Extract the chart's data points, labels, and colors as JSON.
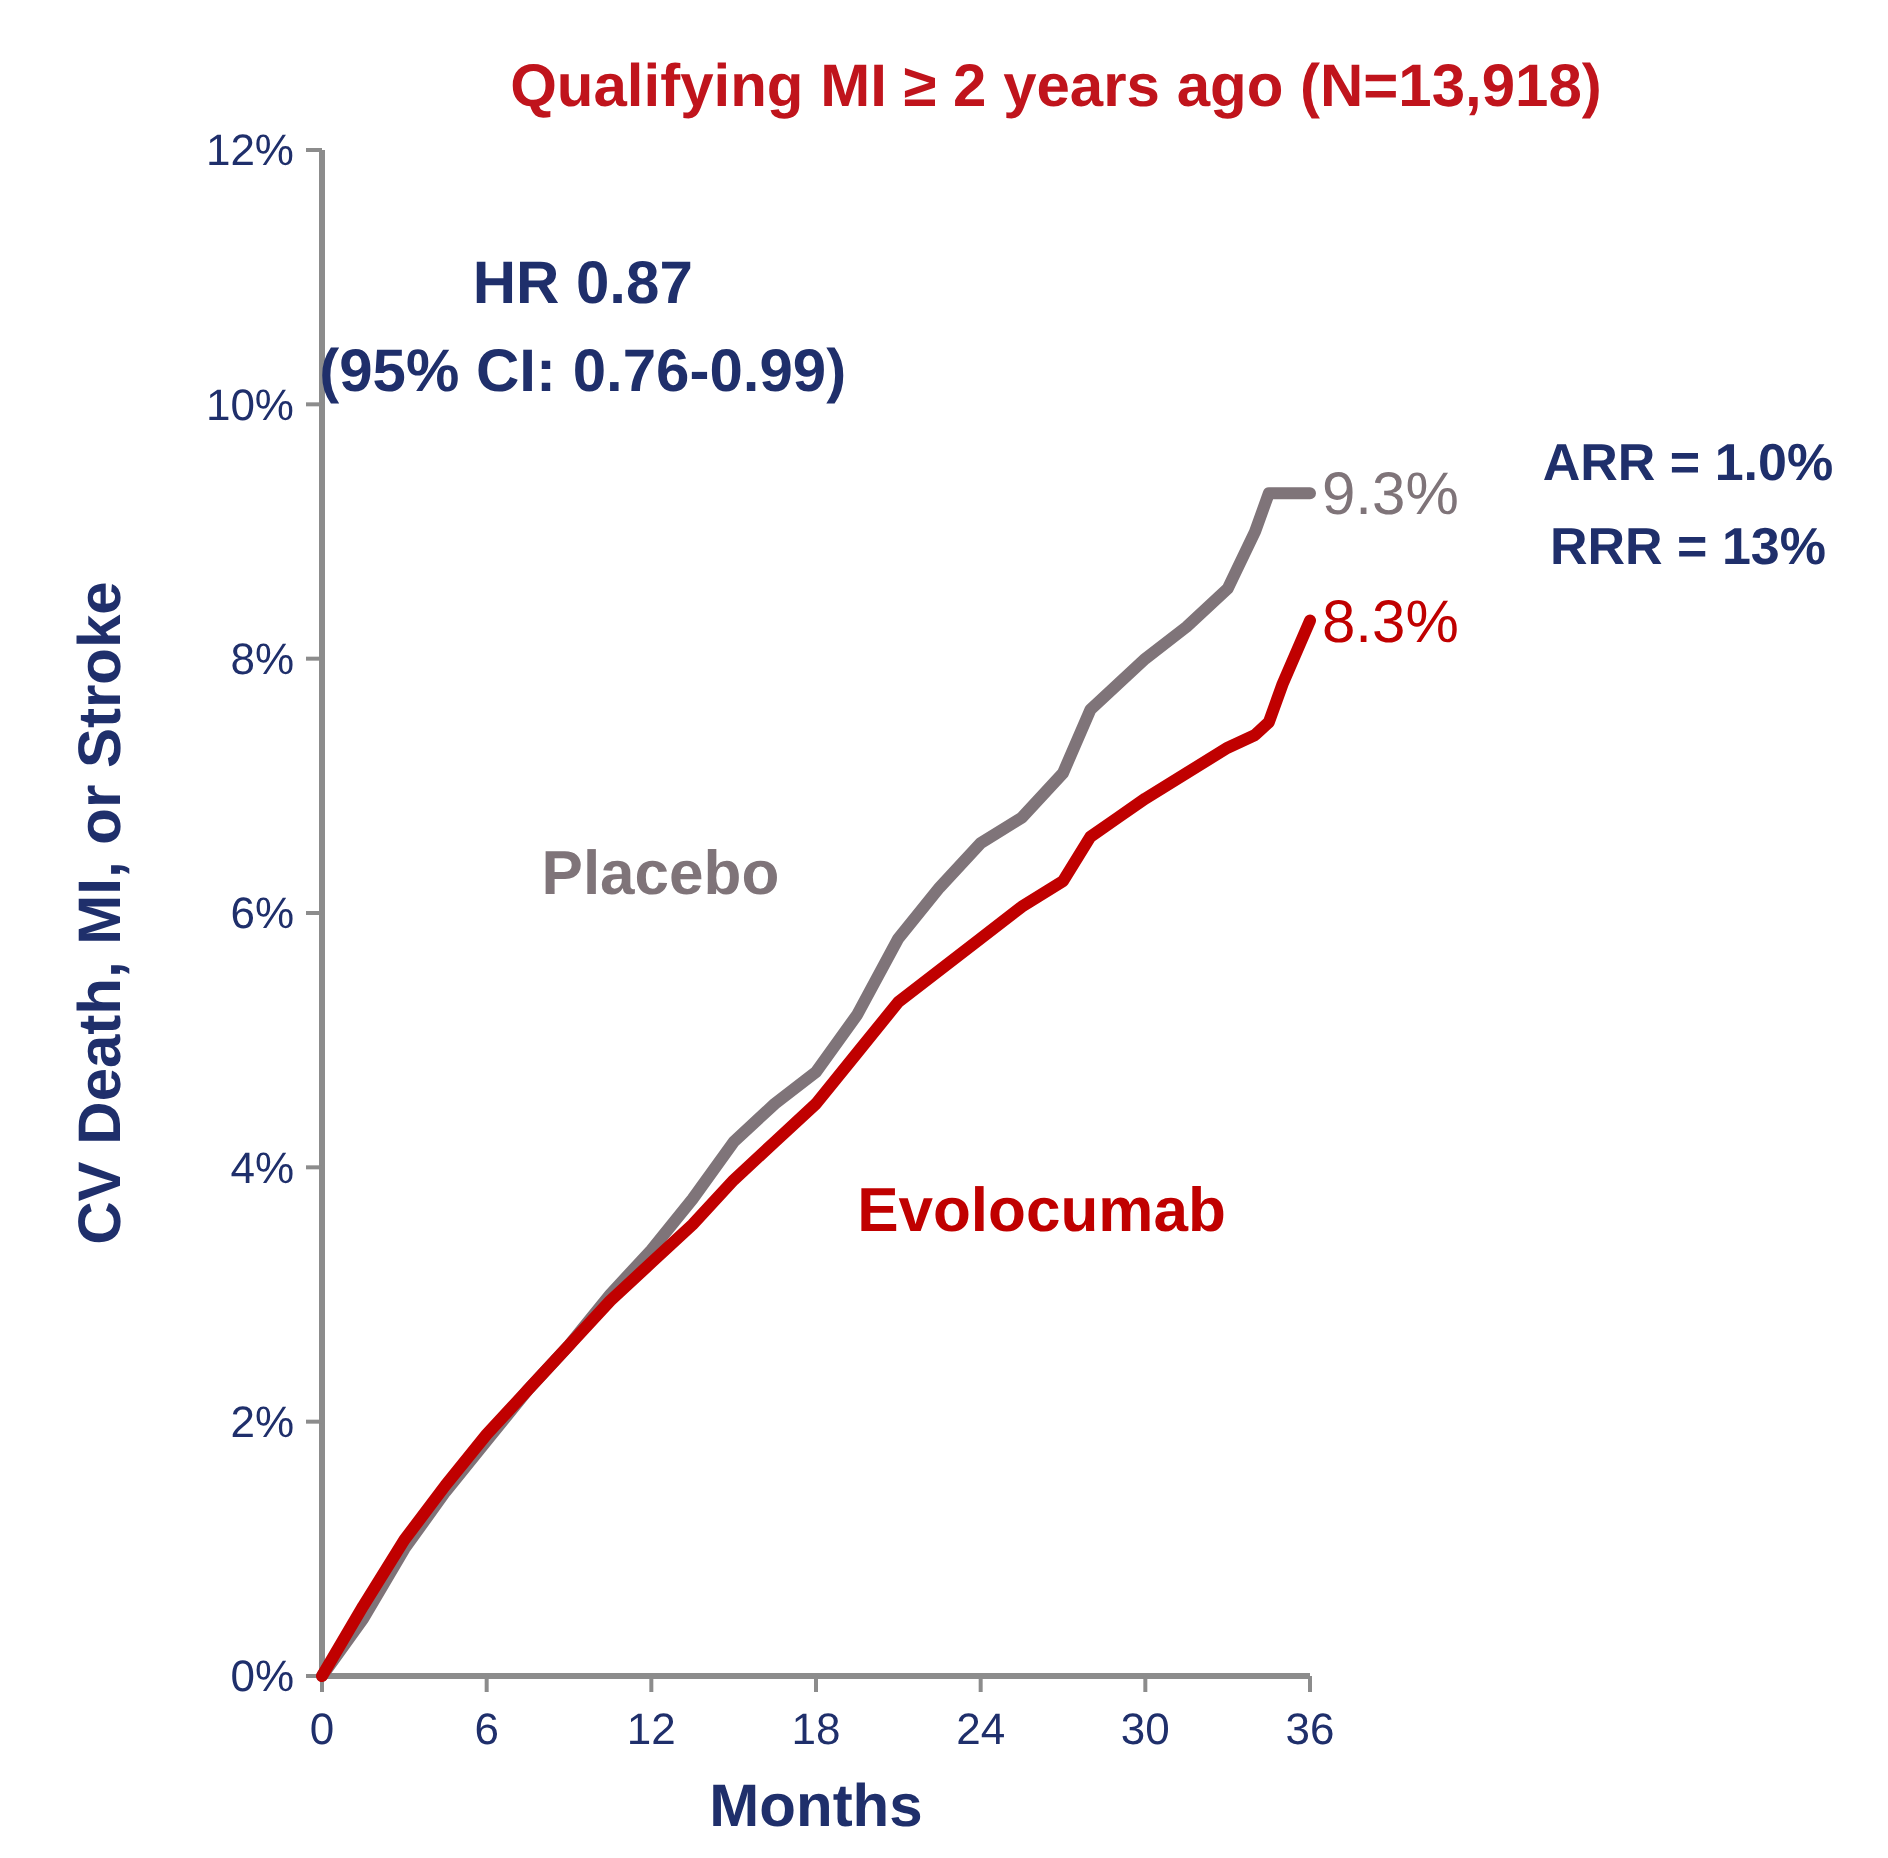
{
  "chart_data": {
    "type": "line",
    "title": "Qualifying MI ≥ 2 years ago (N=13,918)",
    "xlabel": "Months",
    "ylabel": "CV Death, MI, or Stroke",
    "x": [
      0,
      1.5,
      3,
      4.5,
      6,
      7.5,
      9,
      10.5,
      12,
      13.5,
      15,
      16.5,
      18,
      19.5,
      21,
      22.5,
      24,
      25.5,
      27,
      28,
      29,
      30,
      31.5,
      33,
      34,
      34.5,
      35,
      36
    ],
    "series": [
      {
        "name": "Placebo",
        "color": "#7f7479",
        "values": [
          0,
          0.45,
          1.0,
          1.45,
          1.85,
          2.25,
          2.6,
          3.0,
          3.35,
          3.75,
          4.2,
          4.5,
          4.75,
          5.2,
          5.8,
          6.2,
          6.55,
          6.75,
          7.1,
          7.6,
          7.8,
          8.0,
          8.25,
          8.55,
          9.0,
          9.3,
          9.3,
          9.3
        ]
      },
      {
        "name": "Evolocumab",
        "color": "#c00000",
        "values": [
          0,
          0.55,
          1.07,
          1.5,
          1.9,
          2.25,
          2.6,
          2.95,
          3.25,
          3.55,
          3.9,
          4.2,
          4.5,
          4.9,
          5.3,
          5.55,
          5.8,
          6.05,
          6.25,
          6.6,
          6.75,
          6.9,
          7.1,
          7.3,
          7.4,
          7.5,
          7.8,
          8.3
        ]
      }
    ],
    "xlim": [
      0,
      36
    ],
    "xticks": [
      0,
      6,
      12,
      18,
      24,
      30,
      36
    ],
    "ylim": [
      0,
      12
    ],
    "yticks": [
      {
        "value": 0,
        "label": "0%"
      },
      {
        "value": 2,
        "label": "2%"
      },
      {
        "value": 4,
        "label": "4%"
      },
      {
        "value": 6,
        "label": "6%"
      },
      {
        "value": 8,
        "label": "8%"
      },
      {
        "value": 10,
        "label": "10%"
      },
      {
        "value": 12,
        "label": "12%"
      }
    ],
    "grid": false,
    "marker": "none",
    "line_style": "solid",
    "annotations": [
      "HR 0.87",
      "(95% CI: 0.76-0.99)",
      {
        "text": "9.3%",
        "x": 36,
        "y": 9.3
      },
      {
        "text": "8.3%",
        "x": 36,
        "y": 8.3
      },
      "ARR = 1.0%",
      "RRR = 13%"
    ]
  }
}
